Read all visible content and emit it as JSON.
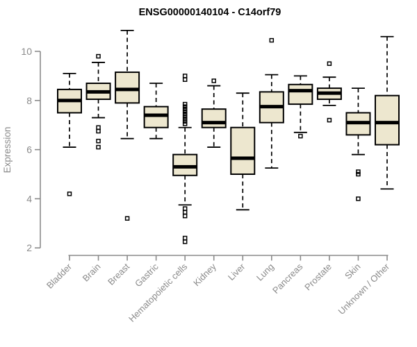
{
  "chart_data": {
    "type": "boxplot",
    "title": "ENSG00000140104 - C14orf79",
    "xlabel": "",
    "ylabel": "Expression",
    "ylim": [
      2,
      10
    ],
    "yticks": [
      2,
      4,
      6,
      8,
      10
    ],
    "grid": false,
    "legend": "none",
    "categories": [
      "Bladder",
      "Brain",
      "Breast",
      "Gastric",
      "Hematopoietic cells",
      "Kidney",
      "Liver",
      "Lung",
      "Pancreas",
      "Prostate",
      "Skin",
      "Unknown / Other"
    ],
    "boxes": [
      {
        "category": "Bladder",
        "whisker_low": 6.1,
        "q1": 7.5,
        "median": 8.0,
        "q3": 8.45,
        "whisker_high": 9.1,
        "outliers": [
          4.2
        ]
      },
      {
        "category": "Brain",
        "whisker_low": 7.3,
        "q1": 8.05,
        "median": 8.35,
        "q3": 8.7,
        "whisker_high": 9.55,
        "outliers": [
          9.8,
          6.9,
          6.75,
          6.35,
          6.1
        ]
      },
      {
        "category": "Breast",
        "whisker_low": 6.45,
        "q1": 7.9,
        "median": 8.45,
        "q3": 9.15,
        "whisker_high": 10.85,
        "outliers": [
          3.2
        ]
      },
      {
        "category": "Gastric",
        "whisker_low": 6.45,
        "q1": 6.9,
        "median": 7.4,
        "q3": 7.75,
        "whisker_high": 8.7,
        "outliers": []
      },
      {
        "category": "Hematopoietic cells",
        "whisker_low": 3.75,
        "q1": 4.95,
        "median": 5.3,
        "q3": 5.8,
        "whisker_high": 6.9,
        "outliers": [
          9.0,
          8.85,
          7.85,
          7.75,
          7.65,
          7.55,
          7.45,
          7.35,
          7.25,
          7.15,
          7.05,
          3.6,
          3.45,
          3.3,
          2.4,
          2.25
        ]
      },
      {
        "category": "Kidney",
        "whisker_low": 6.1,
        "q1": 6.9,
        "median": 7.1,
        "q3": 7.65,
        "whisker_high": 8.6,
        "outliers": [
          8.8
        ]
      },
      {
        "category": "Liver",
        "whisker_low": 3.55,
        "q1": 5.0,
        "median": 5.65,
        "q3": 6.9,
        "whisker_high": 8.3,
        "outliers": []
      },
      {
        "category": "Lung",
        "whisker_low": 5.25,
        "q1": 7.1,
        "median": 7.75,
        "q3": 8.35,
        "whisker_high": 9.05,
        "outliers": [
          10.45
        ]
      },
      {
        "category": "Pancreas",
        "whisker_low": 6.7,
        "q1": 7.85,
        "median": 8.4,
        "q3": 8.65,
        "whisker_high": 9.0,
        "outliers": [
          6.55
        ]
      },
      {
        "category": "Prostate",
        "whisker_low": 7.8,
        "q1": 8.05,
        "median": 8.3,
        "q3": 8.5,
        "whisker_high": 8.95,
        "outliers": [
          9.5,
          7.2
        ]
      },
      {
        "category": "Skin",
        "whisker_low": 5.8,
        "q1": 6.6,
        "median": 7.1,
        "q3": 7.5,
        "whisker_high": 8.5,
        "outliers": [
          5.1,
          5.0,
          4.0
        ]
      },
      {
        "category": "Unknown / Other",
        "whisker_low": 4.4,
        "q1": 6.2,
        "median": 7.1,
        "q3": 8.2,
        "whisker_high": 10.6,
        "outliers": []
      }
    ],
    "colors": {
      "box_fill": "#EDE7CF",
      "box_stroke": "#000000",
      "median": "#000000",
      "whisker": "#000000",
      "outlier_stroke": "#000000",
      "axis": "#8a8a8a",
      "tick_label": "#8a8a8a",
      "title": "#000000",
      "background": "#ffffff"
    }
  }
}
